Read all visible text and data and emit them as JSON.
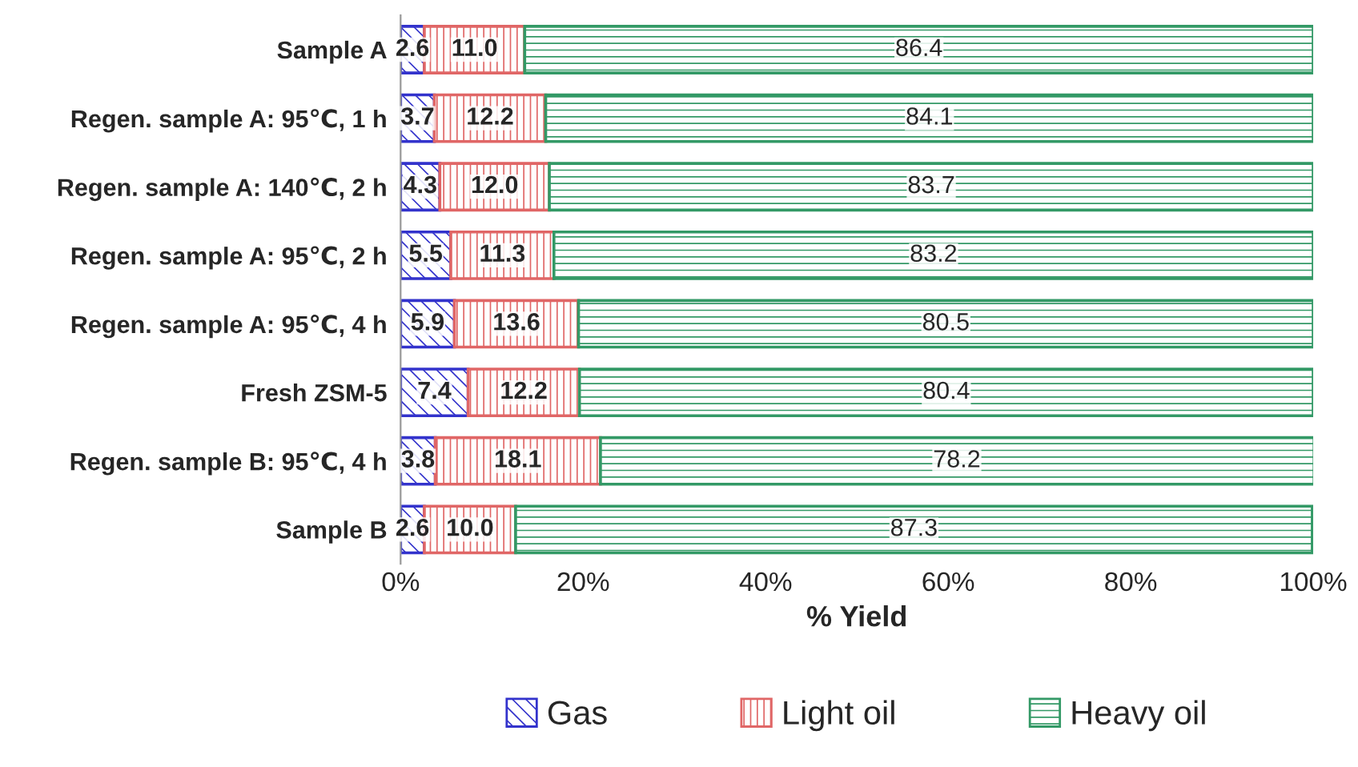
{
  "chart_data": {
    "type": "bar",
    "orientation": "horizontal",
    "stacked": true,
    "xlabel": "% Yield",
    "categories": [
      "Sample A",
      "Regen. sample A: 95℃, 1 h",
      "Regen. sample A: 140℃, 2 h",
      "Regen. sample A: 95℃, 2 h",
      "Regen. sample A: 95℃, 4 h",
      "Fresh ZSM-5",
      "Regen. sample B: 95℃, 4 h",
      "Sample B"
    ],
    "series": [
      {
        "name": "Gas",
        "color": "#3333cc",
        "values": [
          2.6,
          3.7,
          4.3,
          5.5,
          5.9,
          7.4,
          3.8,
          2.6
        ],
        "value_labels": [
          "2.6",
          "3.7",
          "4.3",
          "5.5",
          "5.9",
          "7.4",
          "3.8",
          "2.6"
        ]
      },
      {
        "name": "Light oil",
        "color": "#e06666",
        "values": [
          11.0,
          12.2,
          12.0,
          11.3,
          13.6,
          12.2,
          18.1,
          10.0
        ],
        "value_labels": [
          "11.0",
          "12.2",
          "12.0",
          "11.3",
          "13.6",
          "12.2",
          "18.1",
          "10.0"
        ]
      },
      {
        "name": "Heavy oil",
        "color": "#339966",
        "values": [
          86.4,
          84.1,
          83.7,
          83.2,
          80.5,
          80.4,
          78.2,
          87.3
        ],
        "value_labels": [
          "86.4",
          "84.1",
          "83.7",
          "83.2",
          "80.5",
          "80.4",
          "78.2",
          "87.3"
        ]
      }
    ],
    "xlim": [
      0,
      100
    ],
    "xticks": [
      {
        "value": 0,
        "label": "0%"
      },
      {
        "value": 20,
        "label": "20%"
      },
      {
        "value": 40,
        "label": "40%"
      },
      {
        "value": 60,
        "label": "60%"
      },
      {
        "value": 80,
        "label": "80%"
      },
      {
        "value": 100,
        "label": "100%"
      }
    ],
    "legend": "bottom",
    "grid": false
  }
}
